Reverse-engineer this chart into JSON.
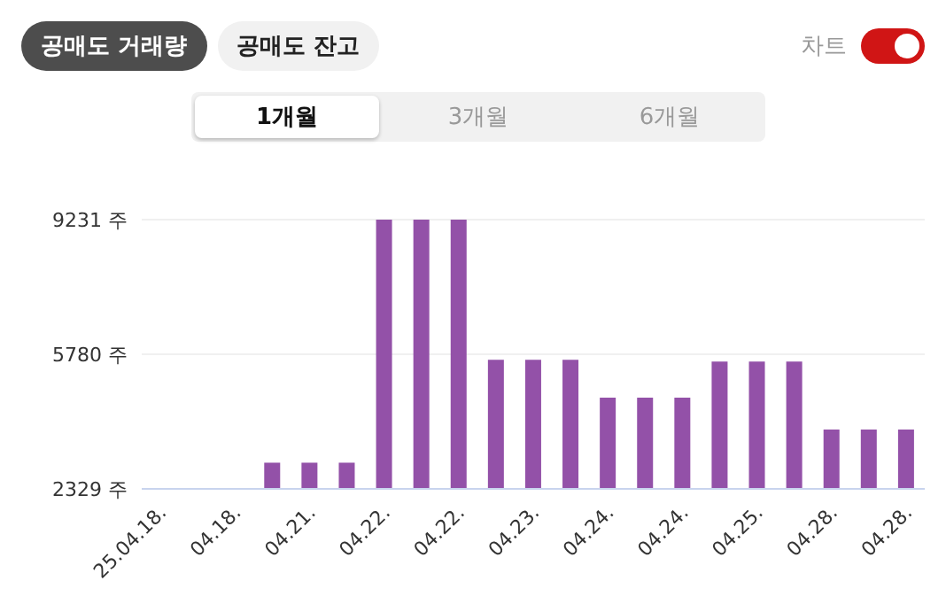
{
  "chart_data": {
    "type": "bar",
    "annotations": [
      "공매도 거래량",
      "공매도 잔고",
      "차트",
      "1개월",
      "3개월",
      "6개월"
    ],
    "categories": [
      "25.04.18.",
      null,
      "04.18.",
      null,
      "04.21.",
      null,
      "04.22.",
      null,
      "04.22.",
      null,
      "04.23.",
      null,
      "04.24.",
      null,
      "04.24.",
      null,
      "04.25.",
      null,
      "04.28.",
      null,
      "04.28."
    ],
    "values": [
      2329,
      2329,
      2329,
      3000,
      3000,
      3000,
      9231,
      9231,
      9231,
      5640,
      5640,
      5640,
      4670,
      4670,
      4670,
      5590,
      5590,
      5590,
      3850,
      3850,
      3850
    ],
    "color": "#9351a8",
    "ylim": [
      2329,
      9231
    ],
    "yticks": [
      {
        "value": 2329,
        "label": "2329 주"
      },
      {
        "value": 5780,
        "label": "5780 주"
      },
      {
        "value": 9231,
        "label": "9231 주"
      }
    ],
    "grid": "y",
    "legend": false
  }
}
